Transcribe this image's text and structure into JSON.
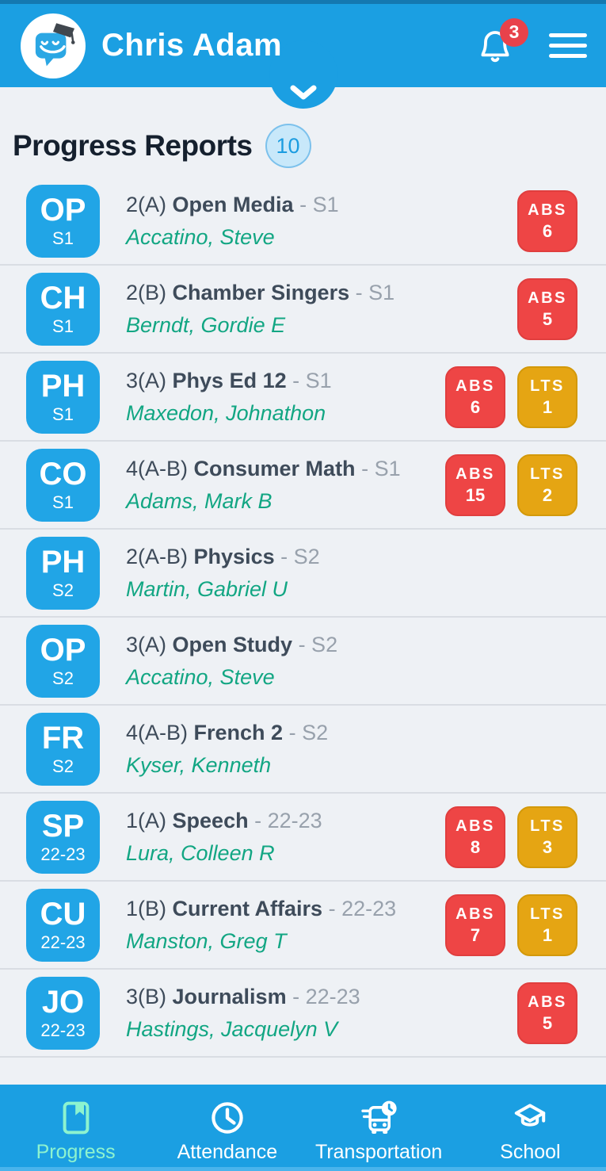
{
  "header": {
    "student_name": "Chris Adam",
    "notification_count": "3"
  },
  "section": {
    "title": "Progress Reports",
    "count": "10"
  },
  "courses": [
    {
      "abbr": "OP",
      "abbr_term": "S1",
      "period": "2(A)",
      "name": "Open Media",
      "term": "S1",
      "teacher": "Accatino, Steve",
      "badges": [
        {
          "type": "ABS",
          "count": "6"
        }
      ]
    },
    {
      "abbr": "CH",
      "abbr_term": "S1",
      "period": "2(B)",
      "name": "Chamber Singers",
      "term": "S1",
      "teacher": "Berndt, Gordie E",
      "badges": [
        {
          "type": "ABS",
          "count": "5"
        }
      ]
    },
    {
      "abbr": "PH",
      "abbr_term": "S1",
      "period": "3(A)",
      "name": "Phys Ed 12",
      "term": "S1",
      "teacher": "Maxedon, Johnathon",
      "badges": [
        {
          "type": "ABS",
          "count": "6"
        },
        {
          "type": "LTS",
          "count": "1"
        }
      ]
    },
    {
      "abbr": "CO",
      "abbr_term": "S1",
      "period": "4(A-B)",
      "name": "Consumer Math",
      "term": "S1",
      "teacher": "Adams, Mark B",
      "badges": [
        {
          "type": "ABS",
          "count": "15"
        },
        {
          "type": "LTS",
          "count": "2"
        }
      ]
    },
    {
      "abbr": "PH",
      "abbr_term": "S2",
      "period": "2(A-B)",
      "name": "Physics",
      "term": "S2",
      "teacher": "Martin, Gabriel U",
      "badges": []
    },
    {
      "abbr": "OP",
      "abbr_term": "S2",
      "period": "3(A)",
      "name": "Open Study",
      "term": "S2",
      "teacher": "Accatino, Steve",
      "badges": []
    },
    {
      "abbr": "FR",
      "abbr_term": "S2",
      "period": "4(A-B)",
      "name": "French 2",
      "term": "S2",
      "teacher": "Kyser, Kenneth",
      "badges": []
    },
    {
      "abbr": "SP",
      "abbr_term": "22-23",
      "period": "1(A)",
      "name": "Speech",
      "term": "22-23",
      "teacher": "Lura, Colleen R",
      "badges": [
        {
          "type": "ABS",
          "count": "8"
        },
        {
          "type": "LTS",
          "count": "3"
        }
      ]
    },
    {
      "abbr": "CU",
      "abbr_term": "22-23",
      "period": "1(B)",
      "name": "Current Affairs",
      "term": "22-23",
      "teacher": "Manston, Greg T",
      "badges": [
        {
          "type": "ABS",
          "count": "7"
        },
        {
          "type": "LTS",
          "count": "1"
        }
      ]
    },
    {
      "abbr": "JO",
      "abbr_term": "22-23",
      "period": "3(B)",
      "name": "Journalism",
      "term": "22-23",
      "teacher": "Hastings, Jacquelyn V",
      "badges": [
        {
          "type": "ABS",
          "count": "5"
        }
      ]
    }
  ],
  "nav": {
    "items": [
      {
        "label": "Progress",
        "icon": "book-bookmark-icon",
        "active": true
      },
      {
        "label": "Attendance",
        "icon": "clock-icon",
        "active": false
      },
      {
        "label": "Transportation",
        "icon": "bus-clock-icon",
        "active": false
      },
      {
        "label": "School",
        "icon": "graduation-cap-icon",
        "active": false
      }
    ]
  },
  "colors": {
    "header_blue": "#1b9fe2",
    "tile_blue": "#21a5e6",
    "status_strip": "#1478b0",
    "background": "#eef1f5",
    "divider": "#d9dde3",
    "title_text": "#15202e",
    "body_text": "#3e4b5a",
    "muted_text": "#98a1ac",
    "teacher_green": "#12a683",
    "active_nav_mint": "#8df3cf",
    "abs_badge": "#ee4545",
    "lts_badge": "#e5a513",
    "notification_red": "#e8424b",
    "count_badge_bg": "#c8e8fa",
    "count_badge_border": "#7cc1ec",
    "count_badge_text": "#1b9ce0"
  }
}
